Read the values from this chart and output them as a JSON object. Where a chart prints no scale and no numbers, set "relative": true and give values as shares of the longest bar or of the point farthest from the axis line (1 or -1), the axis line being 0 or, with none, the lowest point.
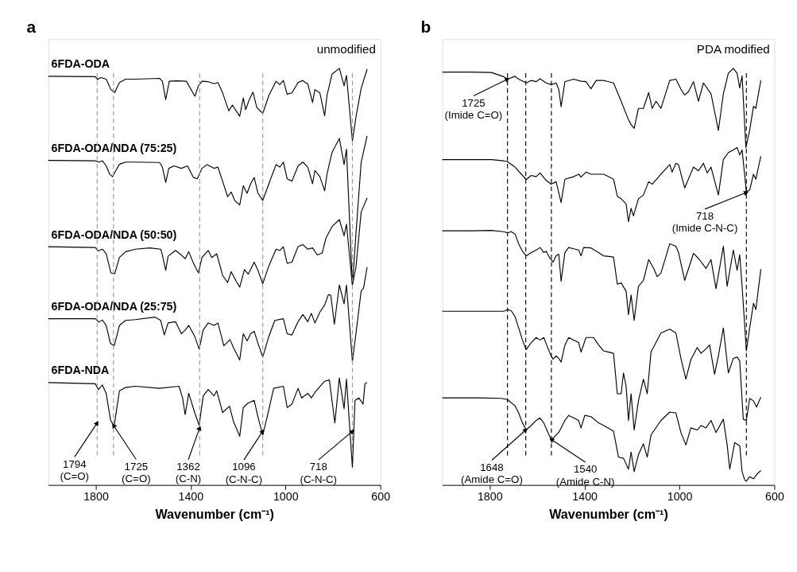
{
  "chart_data": [
    {
      "type": "line",
      "title": "a",
      "xlabel": "Wavenumber (cm⁻¹)",
      "xlim": [
        2000,
        600
      ],
      "xticks": [
        1800,
        1400,
        1000,
        600
      ],
      "relative": true,
      "series": [
        {
          "name": "6FDA-ODA",
          "color": "#000000",
          "x": [
            2000,
            1802,
            1792,
            1787,
            1777,
            1756,
            1736,
            1720,
            1700,
            1674,
            1633,
            1531,
            1519,
            1505,
            1490,
            1459,
            1418,
            1382,
            1367,
            1352,
            1326,
            1301,
            1285,
            1265,
            1239,
            1224,
            1193,
            1178,
            1168,
            1152,
            1137,
            1121,
            1096,
            1070,
            1040,
            1024,
            1009,
            993,
            973,
            947,
            927,
            917,
            906,
            886,
            876,
            855,
            835,
            825,
            804,
            773,
            753,
            743,
            718,
            703,
            681,
            656
          ],
          "values": [
            0.981,
            0.98,
            0.973,
            0.976,
            0.978,
            0.974,
            0.949,
            0.942,
            0.966,
            0.974,
            0.974,
            0.976,
            0.969,
            0.925,
            0.969,
            0.97,
            0.969,
            0.933,
            0.958,
            0.969,
            0.968,
            0.963,
            0.966,
            0.941,
            0.898,
            0.912,
            0.885,
            0.929,
            0.901,
            0.926,
            0.943,
            0.906,
            0.892,
            0.935,
            0.969,
            0.961,
            0.971,
            0.938,
            0.941,
            0.966,
            0.971,
            0.966,
            0.963,
            0.918,
            0.949,
            0.941,
            0.886,
            0.935,
            0.986,
            1.0,
            0.958,
            0.983,
            0.826,
            0.883,
            0.952,
            0.998
          ]
        },
        {
          "name": "6FDA-ODA/NDA (75:25)",
          "color": "#000000",
          "x": [
            2000,
            1802,
            1787,
            1772,
            1756,
            1741,
            1729,
            1715,
            1700,
            1674,
            1633,
            1531,
            1519,
            1505,
            1492,
            1470,
            1439,
            1413,
            1388,
            1372,
            1352,
            1331,
            1301,
            1285,
            1265,
            1244,
            1229,
            1214,
            1193,
            1178,
            1162,
            1147,
            1132,
            1116,
            1096,
            1070,
            1040,
            1024,
            1009,
            993,
            973,
            947,
            927,
            906,
            886,
            876,
            855,
            835,
            825,
            804,
            773,
            753,
            743,
            718,
            703,
            681,
            656
          ],
          "values": [
            0.779,
            0.778,
            0.775,
            0.778,
            0.766,
            0.746,
            0.74,
            0.755,
            0.77,
            0.775,
            0.775,
            0.774,
            0.763,
            0.726,
            0.76,
            0.766,
            0.76,
            0.766,
            0.738,
            0.735,
            0.76,
            0.769,
            0.76,
            0.763,
            0.729,
            0.692,
            0.703,
            0.683,
            0.672,
            0.718,
            0.7,
            0.723,
            0.738,
            0.7,
            0.683,
            0.723,
            0.769,
            0.763,
            0.775,
            0.735,
            0.729,
            0.766,
            0.775,
            0.763,
            0.723,
            0.755,
            0.74,
            0.706,
            0.746,
            0.798,
            0.832,
            0.769,
            0.806,
            0.48,
            0.603,
            0.775,
            0.838
          ]
        },
        {
          "name": "6FDA-ODA/NDA (50:50)",
          "color": "#000000",
          "x": [
            2000,
            1802,
            1789,
            1772,
            1756,
            1736,
            1720,
            1700,
            1674,
            1633,
            1572,
            1526,
            1519,
            1505,
            1495,
            1464,
            1439,
            1423,
            1408,
            1388,
            1367,
            1352,
            1326,
            1311,
            1290,
            1265,
            1244,
            1229,
            1208,
            1193,
            1173,
            1157,
            1132,
            1116,
            1096,
            1070,
            1040,
            1024,
            1009,
            993,
            973,
            947,
            927,
            906,
            886,
            866,
            845,
            830,
            804,
            773,
            753,
            743,
            718,
            703,
            681,
            656
          ],
          "values": [
            0.572,
            0.57,
            0.562,
            0.566,
            0.555,
            0.509,
            0.507,
            0.546,
            0.56,
            0.566,
            0.569,
            0.566,
            0.552,
            0.515,
            0.549,
            0.563,
            0.552,
            0.543,
            0.56,
            0.532,
            0.509,
            0.546,
            0.563,
            0.546,
            0.555,
            0.503,
            0.486,
            0.512,
            0.489,
            0.475,
            0.517,
            0.506,
            0.535,
            0.515,
            0.483,
            0.526,
            0.566,
            0.563,
            0.572,
            0.532,
            0.535,
            0.572,
            0.577,
            0.566,
            0.569,
            0.552,
            0.557,
            0.592,
            0.62,
            0.637,
            0.598,
            0.626,
            0.48,
            0.523,
            0.655,
            0.689
          ]
        },
        {
          "name": "6FDA-ODA/NDA (25:75)",
          "color": "#000000",
          "x": [
            2000,
            1802,
            1787,
            1772,
            1756,
            1738,
            1722,
            1700,
            1674,
            1633,
            1551,
            1526,
            1511,
            1495,
            1464,
            1439,
            1423,
            1408,
            1383,
            1364,
            1347,
            1326,
            1301,
            1285,
            1260,
            1234,
            1219,
            1193,
            1178,
            1162,
            1147,
            1132,
            1116,
            1096,
            1070,
            1045,
            1009,
            993,
            973,
            947,
            927,
            906,
            891,
            876,
            855,
            835,
            819,
            809,
            794,
            773,
            753,
            743,
            718,
            703,
            681,
            671,
            656
          ],
          "values": [
            0.399,
            0.399,
            0.391,
            0.396,
            0.383,
            0.34,
            0.334,
            0.383,
            0.395,
            0.397,
            0.403,
            0.395,
            0.36,
            0.389,
            0.392,
            0.363,
            0.372,
            0.383,
            0.357,
            0.326,
            0.372,
            0.389,
            0.383,
            0.389,
            0.334,
            0.349,
            0.329,
            0.3,
            0.363,
            0.346,
            0.363,
            0.369,
            0.34,
            0.307,
            0.357,
            0.395,
            0.399,
            0.363,
            0.36,
            0.392,
            0.409,
            0.392,
            0.412,
            0.389,
            0.415,
            0.432,
            0.457,
            0.455,
            0.386,
            0.48,
            0.435,
            0.48,
            0.297,
            0.363,
            0.466,
            0.472,
            0.523
          ]
        },
        {
          "name": "6FDA-NDA",
          "color": "#000000",
          "x": [
            2000,
            1802,
            1789,
            1772,
            1756,
            1738,
            1723,
            1700,
            1674,
            1633,
            1531,
            1449,
            1434,
            1423,
            1408,
            1383,
            1364,
            1347,
            1326,
            1301,
            1290,
            1265,
            1236,
            1219,
            1193,
            1178,
            1157,
            1132,
            1116,
            1096,
            1075,
            1050,
            1009,
            993,
            973,
            947,
            932,
            906,
            891,
            871,
            835,
            815,
            792,
            773,
            753,
            743,
            718,
            707,
            691,
            673,
            665,
            656
          ],
          "values": [
            0.246,
            0.243,
            0.229,
            0.24,
            0.22,
            0.157,
            0.14,
            0.226,
            0.234,
            0.237,
            0.232,
            0.237,
            0.209,
            0.169,
            0.22,
            0.174,
            0.143,
            0.214,
            0.229,
            0.214,
            0.226,
            0.174,
            0.189,
            0.152,
            0.117,
            0.186,
            0.197,
            0.203,
            0.163,
            0.12,
            0.169,
            0.232,
            0.237,
            0.186,
            0.194,
            0.232,
            0.209,
            0.22,
            0.209,
            0.226,
            0.249,
            0.252,
            0.149,
            0.257,
            0.183,
            0.254,
            0.043,
            0.203,
            0.209,
            0.194,
            0.243,
            0.246
          ]
        }
      ],
      "ref_lines": [
        {
          "axis": "x",
          "value": 1794,
          "color": "#999999",
          "line_style": "dashed"
        },
        {
          "axis": "x",
          "value": 1725,
          "color": "#999999",
          "line_style": "dashed"
        },
        {
          "axis": "x",
          "value": 1362,
          "color": "#999999",
          "line_style": "dashed"
        },
        {
          "axis": "x",
          "value": 1096,
          "color": "#999999",
          "line_style": "dashed"
        },
        {
          "axis": "x",
          "value": 718,
          "color": "#999999",
          "line_style": "dashed"
        }
      ],
      "annotations": [
        "unmodified",
        {
          "text": "1794\n(C=O)",
          "x": 1794,
          "y": 0.149
        },
        {
          "text": "1725\n(C=O)",
          "x": 1725,
          "y": 0.143
        },
        {
          "text": "1362\n(C-N)",
          "x": 1362,
          "y": 0.137
        },
        {
          "text": "1096\n(C-N-C)",
          "x": 1096,
          "y": 0.129
        },
        {
          "text": "718\n(C-N-C)",
          "x": 718,
          "y": 0.129
        }
      ]
    },
    {
      "type": "line",
      "title": "b",
      "xlabel": "Wavenumber (cm⁻¹)",
      "xlim": [
        2000,
        600
      ],
      "xticks": [
        1800,
        1400,
        1000,
        600
      ],
      "relative": true,
      "series": [
        {
          "color": "#000000",
          "x": [
            2000,
            1877,
            1793,
            1741,
            1725,
            1693,
            1678,
            1646,
            1625,
            1604,
            1588,
            1562,
            1541,
            1520,
            1509,
            1499,
            1483,
            1446,
            1415,
            1394,
            1373,
            1351,
            1320,
            1278,
            1246,
            1215,
            1204,
            1191,
            1173,
            1152,
            1130,
            1115,
            1099,
            1078,
            1041,
            1015,
            994,
            978,
            962,
            941,
            920,
            899,
            867,
            836,
            815,
            794,
            773,
            757,
            746,
            736,
            720,
            704,
            688,
            678,
            657
          ],
          "values": [
            0.991,
            0.991,
            0.99,
            0.98,
            0.974,
            0.981,
            0.974,
            0.965,
            0.971,
            0.968,
            0.975,
            0.965,
            0.961,
            0.965,
            0.95,
            0.908,
            0.968,
            0.974,
            0.969,
            0.968,
            0.951,
            0.971,
            0.971,
            0.965,
            0.921,
            0.877,
            0.865,
            0.856,
            0.904,
            0.904,
            0.942,
            0.904,
            0.921,
            0.904,
            0.971,
            0.974,
            0.95,
            0.936,
            0.944,
            0.968,
            0.921,
            0.965,
            0.939,
            0.851,
            0.939,
            0.988,
            1.0,
            0.988,
            0.953,
            0.982,
            0.81,
            0.851,
            0.909,
            0.904,
            0.971
          ]
        },
        {
          "color": "#000000",
          "x": [
            2000,
            1877,
            1793,
            1741,
            1725,
            1693,
            1646,
            1625,
            1604,
            1588,
            1562,
            1541,
            1520,
            1499,
            1483,
            1446,
            1425,
            1415,
            1394,
            1373,
            1320,
            1278,
            1262,
            1246,
            1225,
            1215,
            1204,
            1194,
            1173,
            1152,
            1130,
            1115,
            1078,
            1041,
            1031,
            1015,
            1004,
            978,
            941,
            920,
            899,
            883,
            867,
            836,
            815,
            794,
            773,
            757,
            746,
            736,
            718,
            704,
            688,
            678,
            657
          ],
          "values": [
            0.781,
            0.781,
            0.781,
            0.778,
            0.776,
            0.763,
            0.733,
            0.743,
            0.74,
            0.749,
            0.731,
            0.722,
            0.728,
            0.678,
            0.734,
            0.74,
            0.746,
            0.739,
            0.751,
            0.746,
            0.746,
            0.734,
            0.693,
            0.687,
            0.675,
            0.632,
            0.664,
            0.646,
            0.687,
            0.696,
            0.728,
            0.722,
            0.746,
            0.769,
            0.751,
            0.772,
            0.769,
            0.713,
            0.763,
            0.754,
            0.772,
            0.749,
            0.763,
            0.696,
            0.781,
            0.798,
            0.804,
            0.81,
            0.792,
            0.804,
            0.704,
            0.708,
            0.746,
            0.734,
            0.789
          ]
        },
        {
          "color": "#000000",
          "x": [
            2000,
            1877,
            1793,
            1741,
            1725,
            1709,
            1693,
            1678,
            1662,
            1646,
            1625,
            1604,
            1588,
            1572,
            1562,
            1546,
            1533,
            1520,
            1509,
            1499,
            1483,
            1467,
            1446,
            1425,
            1415,
            1404,
            1373,
            1341,
            1320,
            1278,
            1262,
            1246,
            1225,
            1215,
            1204,
            1191,
            1173,
            1152,
            1130,
            1109,
            1094,
            1078,
            1041,
            1015,
            1004,
            978,
            941,
            920,
            888,
            867,
            846,
            815,
            799,
            773,
            757,
            746,
            736,
            718,
            704,
            688,
            678,
            657
          ],
          "values": [
            0.61,
            0.61,
            0.611,
            0.608,
            0.605,
            0.608,
            0.602,
            0.579,
            0.561,
            0.55,
            0.558,
            0.564,
            0.57,
            0.558,
            0.561,
            0.544,
            0.535,
            0.55,
            0.554,
            0.489,
            0.558,
            0.57,
            0.567,
            0.564,
            0.55,
            0.57,
            0.569,
            0.558,
            0.55,
            0.547,
            0.482,
            0.485,
            0.465,
            0.409,
            0.456,
            0.395,
            0.477,
            0.491,
            0.541,
            0.52,
            0.5,
            0.509,
            0.579,
            0.573,
            0.558,
            0.491,
            0.556,
            0.544,
            0.52,
            0.541,
            0.471,
            0.573,
            0.477,
            0.564,
            0.515,
            0.553,
            0.477,
            0.322,
            0.377,
            0.436,
            0.421,
            0.518
          ]
        },
        {
          "color": "#000000",
          "x": [
            2000,
            1877,
            1741,
            1725,
            1709,
            1693,
            1678,
            1662,
            1646,
            1625,
            1604,
            1588,
            1572,
            1562,
            1546,
            1533,
            1520,
            1509,
            1499,
            1483,
            1467,
            1446,
            1425,
            1415,
            1394,
            1362,
            1341,
            1320,
            1278,
            1262,
            1246,
            1236,
            1225,
            1215,
            1204,
            1191,
            1173,
            1152,
            1136,
            1120,
            1078,
            1041,
            1015,
            994,
            973,
            952,
            925,
            909,
            888,
            873,
            852,
            836,
            815,
            794,
            773,
            757,
            746,
            731,
            718,
            704,
            688,
            675,
            657
          ],
          "values": [
            0.417,
            0.417,
            0.417,
            0.421,
            0.418,
            0.404,
            0.377,
            0.348,
            0.325,
            0.342,
            0.354,
            0.348,
            0.354,
            0.339,
            0.316,
            0.302,
            0.31,
            0.304,
            0.295,
            0.336,
            0.354,
            0.348,
            0.342,
            0.319,
            0.354,
            0.354,
            0.336,
            0.322,
            0.316,
            0.219,
            0.219,
            0.269,
            0.237,
            0.155,
            0.219,
            0.132,
            0.202,
            0.254,
            0.219,
            0.319,
            0.365,
            0.374,
            0.365,
            0.304,
            0.254,
            0.301,
            0.33,
            0.316,
            0.327,
            0.336,
            0.266,
            0.31,
            0.377,
            0.269,
            0.304,
            0.307,
            0.298,
            0.158,
            0.155,
            0.208,
            0.202,
            0.187,
            0.211
          ]
        },
        {
          "color": "#000000",
          "x": [
            2000,
            1909,
            1846,
            1751,
            1725,
            1693,
            1678,
            1662,
            1646,
            1625,
            1604,
            1588,
            1572,
            1557,
            1541,
            1530,
            1509,
            1483,
            1467,
            1446,
            1425,
            1415,
            1399,
            1373,
            1341,
            1320,
            1278,
            1257,
            1236,
            1215,
            1204,
            1191,
            1173,
            1152,
            1136,
            1120,
            1078,
            1041,
            1015,
            994,
            973,
            952,
            925,
            909,
            888,
            867,
            846,
            815,
            799,
            788,
            767,
            746,
            736,
            725,
            718,
            704,
            688,
            673,
            657
          ],
          "values": [
            0.209,
            0.209,
            0.209,
            0.208,
            0.205,
            0.19,
            0.173,
            0.149,
            0.132,
            0.143,
            0.155,
            0.161,
            0.149,
            0.129,
            0.109,
            0.114,
            0.126,
            0.155,
            0.167,
            0.161,
            0.155,
            0.137,
            0.167,
            0.164,
            0.149,
            0.143,
            0.129,
            0.067,
            0.064,
            0.038,
            0.079,
            0.032,
            0.073,
            0.099,
            0.067,
            0.12,
            0.155,
            0.175,
            0.173,
            0.126,
            0.096,
            0.137,
            0.132,
            0.143,
            0.137,
            0.155,
            0.126,
            0.158,
            0.096,
            0.038,
            0.102,
            0.094,
            0.032,
            0.012,
            0.009,
            0.02,
            0.015,
            0.026,
            0.035
          ]
        }
      ],
      "ref_lines": [
        {
          "axis": "x",
          "value": 1725,
          "color": "#000000",
          "line_style": "dashed"
        },
        {
          "axis": "x",
          "value": 1648,
          "color": "#000000",
          "line_style": "dashed"
        },
        {
          "axis": "x",
          "value": 1540,
          "color": "#000000",
          "line_style": "dashed"
        },
        {
          "axis": "x",
          "value": 718,
          "color": "#000000",
          "line_style": "dashed"
        }
      ],
      "annotations": [
        "PDA modified",
        {
          "text": "1725\n(Imide C=O)",
          "x": 1725,
          "y": 0.974
        },
        {
          "text": "718\n(Imide C-N-C)",
          "x": 718,
          "y": 0.702
        },
        {
          "text": "1648\n(Amide C=O)",
          "x": 1648,
          "y": 0.132
        },
        {
          "text": "1540\n(Amide C-N)",
          "x": 1540,
          "y": 0.109
        }
      ]
    }
  ]
}
